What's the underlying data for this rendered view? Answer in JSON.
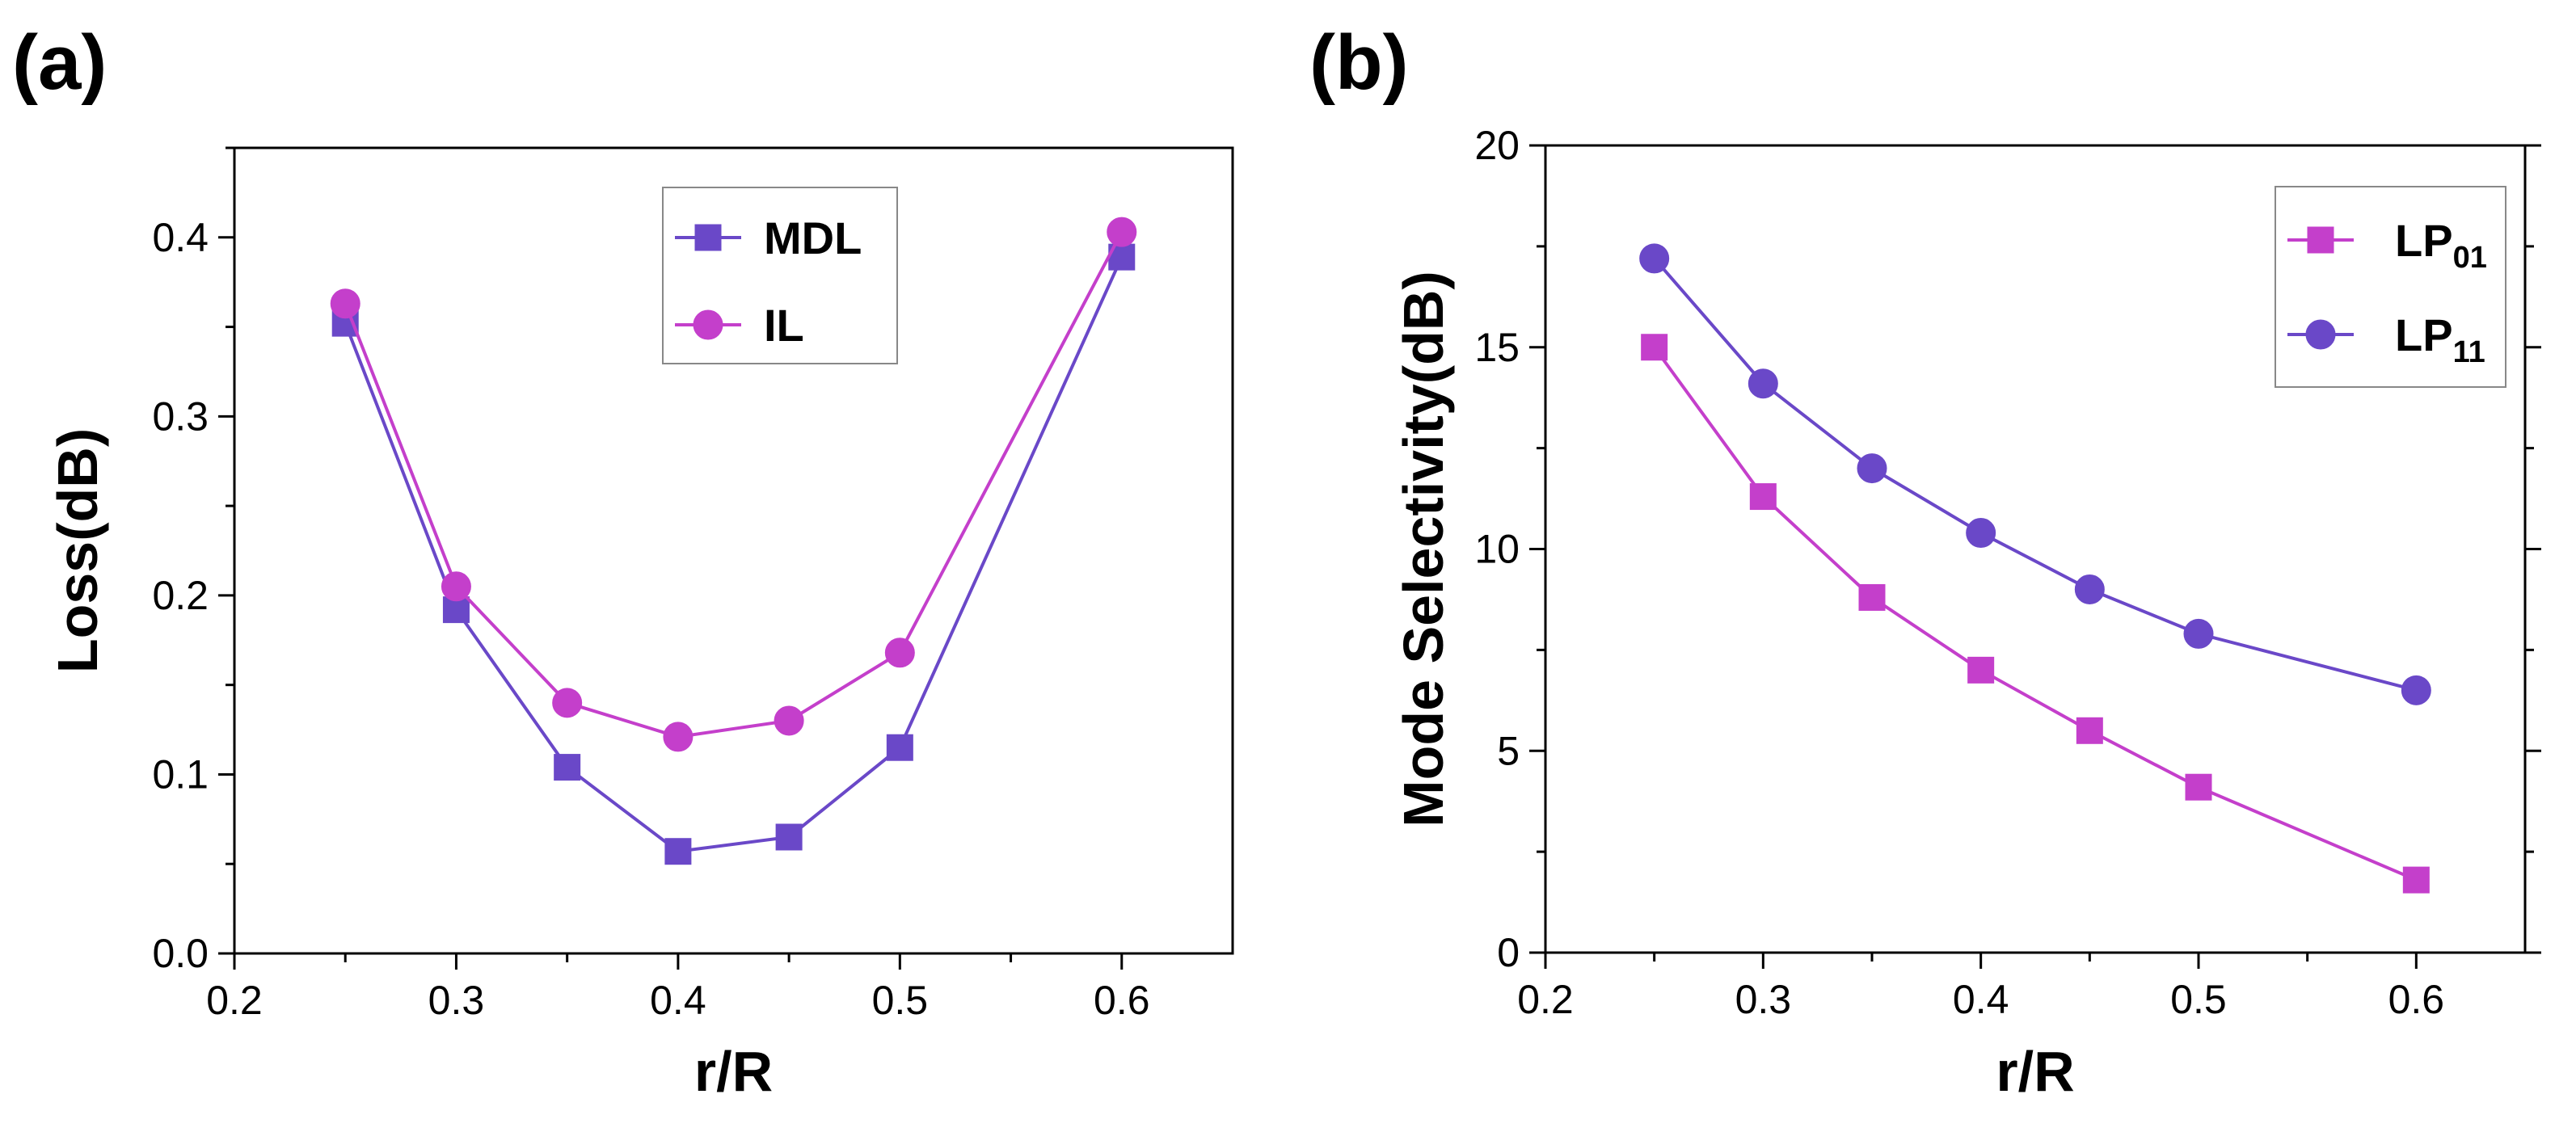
{
  "panels": [
    {
      "label": "(a)"
    },
    {
      "label": "(b)"
    }
  ],
  "colors": {
    "purple": "#6A48C8",
    "magenta": "#C43FCB",
    "axis": "#000000"
  },
  "chart_data": [
    {
      "type": "line",
      "title": "",
      "xlabel": "r/R",
      "ylabel": "Loss(dB)",
      "xlim": [
        0.2,
        0.65
      ],
      "ylim": [
        0.0,
        0.45
      ],
      "xticks": [
        0.2,
        0.3,
        0.4,
        0.5,
        0.6
      ],
      "xtick_labels": [
        "0.2",
        "0.3",
        "0.4",
        "0.5",
        "0.6"
      ],
      "yticks": [
        0.0,
        0.1,
        0.2,
        0.3,
        0.4
      ],
      "ytick_labels": [
        "0.0",
        "0.1",
        "0.2",
        "0.3",
        "0.4"
      ],
      "legend_position": "top-right",
      "x": [
        0.25,
        0.3,
        0.35,
        0.4,
        0.45,
        0.5,
        0.6
      ],
      "series": [
        {
          "name": "MDL",
          "sub": "",
          "marker": "square",
          "color": "#6A48C8",
          "values": [
            0.352,
            0.192,
            0.104,
            0.057,
            0.065,
            0.115,
            0.389
          ]
        },
        {
          "name": "IL",
          "sub": "",
          "marker": "circle",
          "color": "#C43FCB",
          "values": [
            0.363,
            0.205,
            0.14,
            0.121,
            0.13,
            0.168,
            0.403
          ]
        }
      ]
    },
    {
      "type": "line",
      "title": "",
      "xlabel": "r/R",
      "ylabel": "Mode Selectivity(dB)",
      "xlim": [
        0.2,
        0.65
      ],
      "ylim": [
        0,
        20
      ],
      "xticks": [
        0.2,
        0.3,
        0.4,
        0.5,
        0.6
      ],
      "xtick_labels": [
        "0.2",
        "0.3",
        "0.4",
        "0.5",
        "0.6"
      ],
      "yticks": [
        0,
        5,
        10,
        15,
        20
      ],
      "ytick_labels": [
        "0",
        "5",
        "10",
        "15",
        "20"
      ],
      "legend_position": "top-right",
      "x": [
        0.25,
        0.3,
        0.35,
        0.4,
        0.45,
        0.5,
        0.6
      ],
      "series": [
        {
          "name": "LP",
          "sub": "01",
          "marker": "square",
          "color": "#C43FCB",
          "values": [
            15.0,
            11.3,
            8.8,
            7.0,
            5.5,
            4.1,
            1.8
          ]
        },
        {
          "name": "LP",
          "sub": "11",
          "marker": "circle",
          "color": "#6A48C8",
          "values": [
            17.2,
            14.1,
            12.0,
            10.4,
            9.0,
            7.9,
            6.5
          ]
        }
      ]
    }
  ]
}
